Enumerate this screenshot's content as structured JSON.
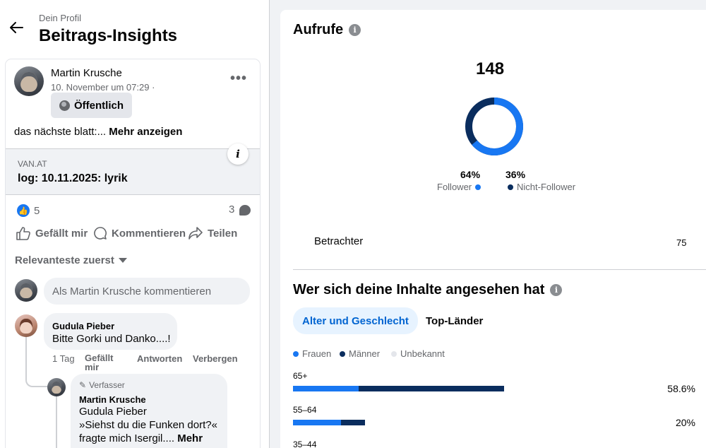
{
  "header": {
    "breadcrumb": "Dein Profil",
    "title": "Beitrags-Insights"
  },
  "post": {
    "author": "Martin Krusche",
    "timestamp": "10. November um 07:29 ·",
    "audience": "Öffentlich",
    "text": "das nächste blatt:...",
    "more_label": "Mehr anzeigen",
    "link": {
      "domain": "VAN.AT",
      "title": "log: 10.11.2025: lyrik"
    },
    "like_count": "5",
    "comment_count": "3",
    "actions": {
      "like": "Gefällt mir",
      "comment": "Kommentieren",
      "share": "Teilen"
    },
    "sort_label": "Relevanteste zuerst",
    "comment_placeholder": "Als Martin Krusche kommentieren"
  },
  "comments": [
    {
      "author": "Gudula Pieber",
      "text": "Bitte Gorki und Danko....!",
      "time": "1 Tag",
      "like": "Gefällt mir",
      "reply": "Antworten",
      "hide": "Verbergen"
    }
  ],
  "reply": {
    "badge": "Verfasser",
    "author": "Martin Krusche",
    "mention": "Gudula Pieber",
    "text_line1": "»Siehst du die Funken dort?«",
    "text_line2": "fragte mich Isergil....",
    "more": "Mehr"
  },
  "views": {
    "title": "Aufrufe",
    "total": "148",
    "follower_pct": "64%",
    "follower_share": 0.64,
    "follower_label": "Follower",
    "nonfollower_pct": "36%",
    "nonfollower_label": "Nicht-Follower",
    "viewers_label": "Betrachter",
    "viewers_value": "75"
  },
  "audience": {
    "title": "Wer sich deine Inhalte angesehen hat",
    "tabs": [
      "Alter und Geschlecht",
      "Top-Länder"
    ],
    "legend": [
      "Frauen",
      "Männer",
      "Unbekannt"
    ],
    "rows": [
      {
        "age": "65+",
        "value": "58.6%",
        "women": 18.2,
        "men": 40.4
      },
      {
        "age": "55–64",
        "value": "20%",
        "women": 13.3,
        "men": 6.7
      },
      {
        "age": "35–44"
      }
    ]
  },
  "colors": {
    "accent": "#1877f2",
    "follower": "#1877f2",
    "nonfollower": "#0a2d5e",
    "women": "#1877f2",
    "men": "#0a2d5e",
    "unknown": "#e4e6eb"
  }
}
